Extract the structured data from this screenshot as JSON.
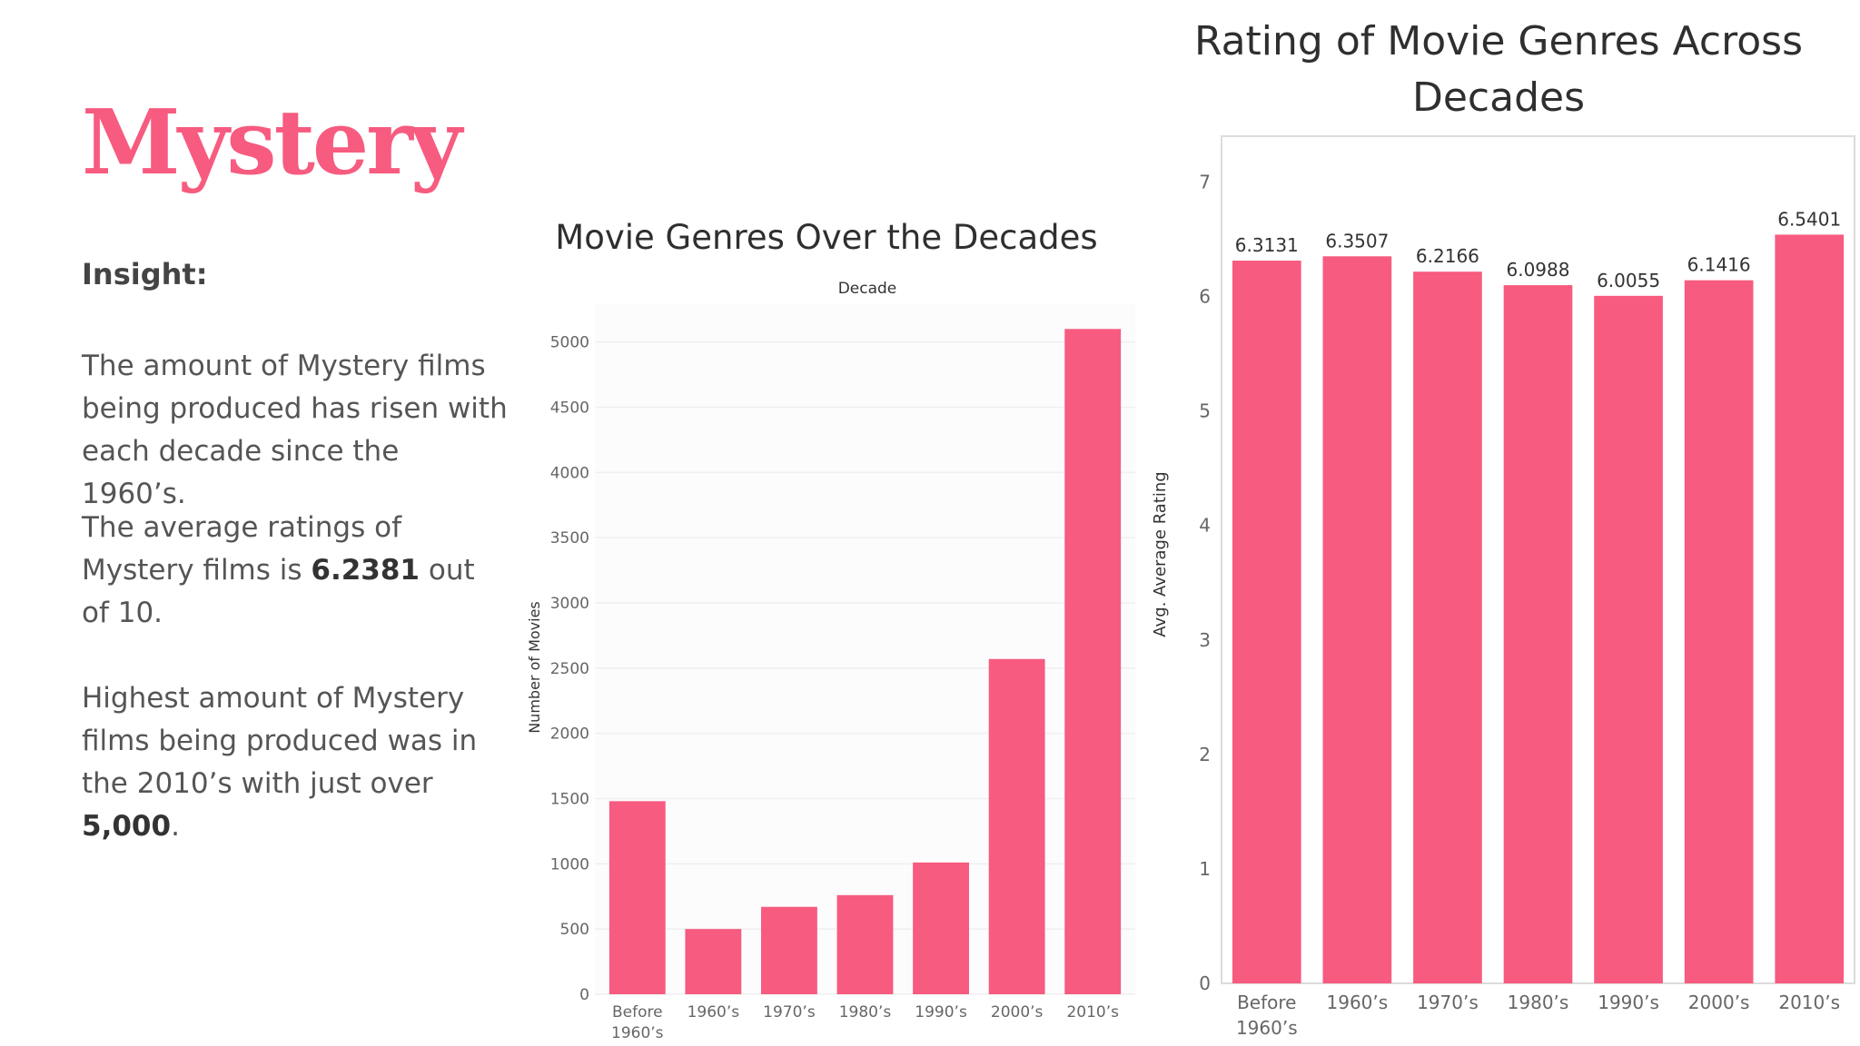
{
  "slide": {
    "title": "Mystery",
    "insight_label": "Insight:",
    "p1": "The amount of Mystery films being produced has risen with each decade since the 1960’s.",
    "p2_a": "The average ratings of Mystery films is ",
    "p2_b": "6.2381",
    "p2_c": " out of 10.",
    "p3_a": "Highest amount of Mystery films being produced was in the 2010’s with just over ",
    "p3_b": "5,000",
    "p3_c": "."
  },
  "colors": {
    "bar": "#f75b7f",
    "accent": "#f75b7f"
  },
  "chart_data": [
    {
      "type": "bar",
      "title": "Movie Genres Over the Decades",
      "xlabel": "Decade",
      "ylabel": "Number of Movies",
      "categories": [
        "Before 1960’s",
        "1960’s",
        "1970’s",
        "1980’s",
        "1990’s",
        "2000’s",
        "2010’s"
      ],
      "values": [
        1480,
        500,
        670,
        760,
        1010,
        2570,
        5100
      ],
      "ylim": [
        0,
        5000
      ],
      "yticks": [
        0,
        500,
        1000,
        1500,
        2000,
        2500,
        3000,
        3500,
        4000,
        4500,
        5000
      ],
      "grid": true
    },
    {
      "type": "bar",
      "title": "Rating of Movie Genres Across Decades",
      "xlabel": "",
      "ylabel": "Avg. Average Rating",
      "categories": [
        "Before 1960’s",
        "1960’s",
        "1970’s",
        "1980’s",
        "1990’s",
        "2000’s",
        "2010’s"
      ],
      "values": [
        6.3131,
        6.3507,
        6.2166,
        6.0988,
        6.0055,
        6.1416,
        6.5401
      ],
      "data_labels": [
        "6.3131",
        "6.3507",
        "6.2166",
        "6.0988",
        "6.0055",
        "6.1416",
        "6.5401"
      ],
      "ylim": [
        0,
        7
      ],
      "yticks": [
        0,
        1,
        2,
        3,
        4,
        5,
        6,
        7
      ],
      "grid": false
    }
  ]
}
